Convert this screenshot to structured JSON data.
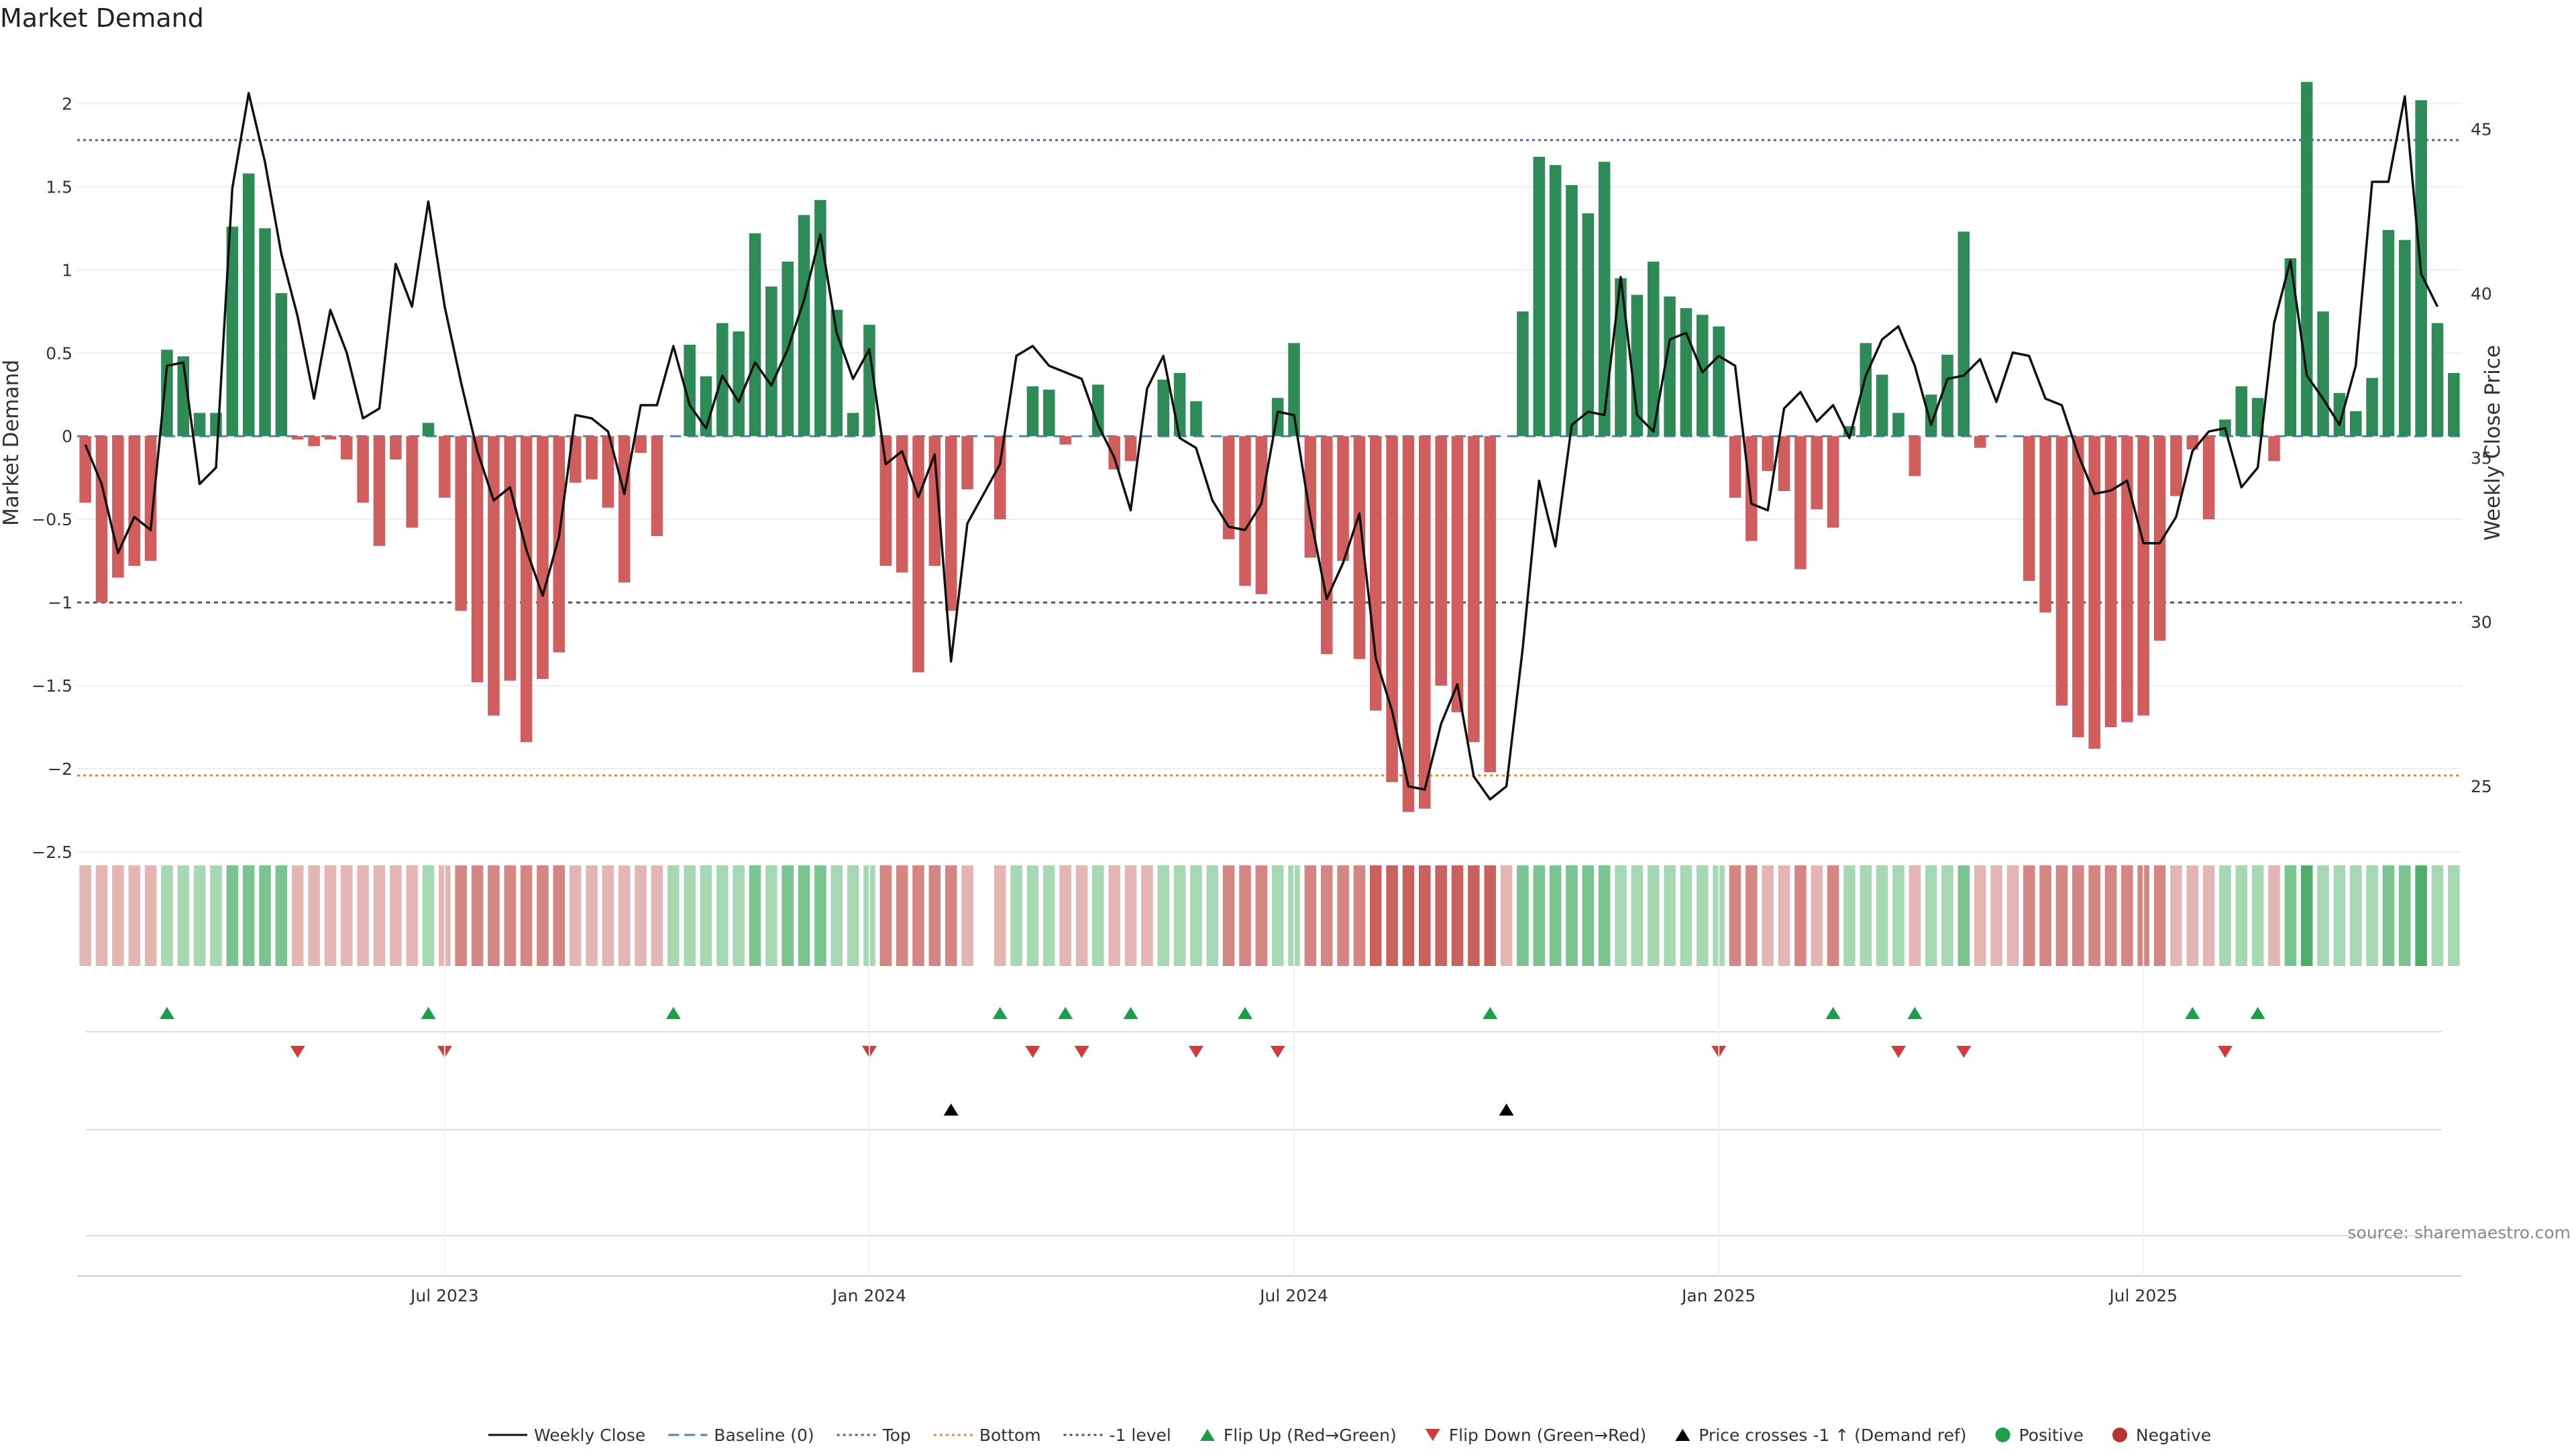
{
  "chart_data": {
    "type": "bar",
    "title": "Market Demand",
    "ylabel_left": "Market Demand",
    "ylabel_right": "Weekly Close Price",
    "ylim_left": [
      -2.5,
      2.3
    ],
    "ylim_right": [
      23.0,
      47.3
    ],
    "yticks_left": [
      2,
      1.5,
      1,
      0.5,
      0,
      -0.5,
      -1,
      -1.5,
      -2,
      -2.5
    ],
    "yticks_left_labels": [
      "2",
      "1.5",
      "1",
      "0.5",
      "0",
      "−0.5",
      "−1",
      "−1.5",
      "−2",
      "−2.5"
    ],
    "yticks_right": [
      45,
      40,
      35,
      30,
      25
    ],
    "xticks": [
      {
        "label": "Jul 2023",
        "week": 22
      },
      {
        "label": "Jan 2024",
        "week": 48
      },
      {
        "label": "Jul 2024",
        "week": 74
      },
      {
        "label": "Jan 2025",
        "week": 100
      },
      {
        "label": "Jul 2025",
        "week": 126
      }
    ],
    "reference_lines": {
      "top": 1.78,
      "bottom": -2.04,
      "minus_one": -1.0,
      "baseline": 0
    },
    "demand": [
      -0.4,
      -1.0,
      -0.85,
      -0.78,
      -0.75,
      0.52,
      0.48,
      0.14,
      0.14,
      1.26,
      1.58,
      1.25,
      0.86,
      -0.02,
      -0.06,
      -0.02,
      -0.14,
      -0.4,
      -0.66,
      -0.14,
      -0.55,
      0.08,
      -0.37,
      -1.05,
      -1.48,
      -1.68,
      -1.47,
      -1.84,
      -1.46,
      -1.3,
      -0.28,
      -0.26,
      -0.43,
      -0.88,
      -0.1,
      -0.6,
      0.0,
      0.55,
      0.36,
      0.68,
      0.63,
      1.22,
      0.9,
      1.05,
      1.33,
      1.42,
      0.76,
      0.14,
      0.67,
      -0.78,
      -0.82,
      -1.42,
      -0.78,
      -1.05,
      -0.32,
      0.0,
      -0.5,
      0.0,
      0.3,
      0.28,
      -0.05,
      0.0,
      0.31,
      -0.2,
      -0.15,
      0.0,
      0.34,
      0.38,
      0.21,
      0.0,
      -0.62,
      -0.9,
      -0.95,
      0.23,
      0.56,
      -0.73,
      -1.31,
      -0.75,
      -1.34,
      -1.65,
      -2.08,
      -2.26,
      -2.24,
      -1.5,
      -1.66,
      -1.84,
      -2.02,
      0.0,
      0.75,
      1.68,
      1.63,
      1.51,
      1.34,
      1.65,
      0.95,
      0.85,
      1.05,
      0.84,
      0.77,
      0.73,
      0.66,
      -0.37,
      -0.63,
      -0.21,
      -0.33,
      -0.8,
      -0.44,
      -0.55,
      0.06,
      0.56,
      0.37,
      0.14,
      -0.24,
      0.25,
      0.49,
      1.23,
      -0.07,
      0.0,
      0.0,
      -0.87,
      -1.06,
      -1.62,
      -1.81,
      -1.88,
      -1.75,
      -1.72,
      -1.68,
      -1.23,
      -0.36,
      -0.08,
      -0.5,
      0.1,
      0.3,
      0.23,
      -0.15,
      1.07,
      2.13,
      0.75,
      0.26,
      0.15,
      0.35,
      1.24,
      1.18,
      2.02,
      0.68,
      0.38
    ],
    "weekly_close": [
      35.4,
      34.2,
      32.1,
      33.2,
      32.8,
      37.8,
      37.9,
      34.2,
      34.7,
      43.2,
      46.1,
      44.0,
      41.2,
      39.3,
      36.8,
      39.5,
      38.2,
      36.2,
      36.5,
      40.9,
      39.6,
      42.8,
      39.6,
      37.3,
      35.2,
      33.7,
      34.1,
      32.2,
      30.8,
      32.6,
      36.3,
      36.2,
      35.8,
      33.9,
      36.6,
      36.6,
      38.4,
      36.6,
      35.9,
      37.5,
      36.7,
      37.9,
      37.2,
      38.3,
      39.8,
      41.8,
      38.8,
      37.4,
      38.3,
      34.8,
      35.2,
      33.8,
      35.1,
      28.8,
      33.0,
      33.9,
      34.8,
      38.1,
      38.4,
      37.8,
      37.6,
      37.4,
      36.0,
      35.0,
      33.4,
      37.1,
      38.1,
      35.6,
      35.3,
      33.7,
      32.9,
      32.8,
      33.6,
      36.4,
      36.3,
      33.2,
      30.7,
      31.8,
      33.3,
      28.9,
      27.3,
      25.0,
      24.9,
      26.9,
      28.1,
      25.3,
      24.6,
      25.0,
      29.2,
      34.3,
      32.3,
      36.0,
      36.4,
      36.3,
      40.5,
      36.3,
      35.8,
      38.6,
      38.8,
      37.6,
      38.1,
      37.8,
      33.6,
      33.4,
      36.5,
      37.0,
      36.1,
      36.6,
      35.6,
      37.5,
      38.6,
      39.0,
      37.8,
      36.0,
      37.4,
      37.5,
      38.0,
      36.7,
      38.2,
      38.1,
      36.8,
      36.6,
      35.1,
      33.9,
      34.0,
      34.3,
      32.4,
      32.4,
      33.2,
      35.2,
      35.8,
      35.9,
      34.1,
      34.7,
      39.1,
      41.0,
      37.5,
      36.8,
      36.0,
      37.8,
      43.4,
      43.4,
      46.0,
      40.6,
      39.6
    ],
    "strip_levels": [
      -1,
      -1,
      -1,
      -1,
      -1,
      1,
      1,
      1,
      1,
      2,
      2,
      2,
      2,
      -1,
      -1,
      -1,
      -1,
      -1,
      -1,
      -1,
      -1,
      1,
      -1,
      -2,
      -2,
      -2,
      -2,
      -2,
      -2,
      -2,
      -1,
      -1,
      -1,
      -1,
      -1,
      -1,
      1,
      1,
      1,
      1,
      1,
      2,
      1,
      2,
      2,
      2,
      1,
      1,
      1,
      -2,
      -2,
      -2,
      -2,
      -2,
      -1,
      0,
      -1,
      1,
      1,
      1,
      -1,
      -1,
      1,
      -1,
      -1,
      -1,
      1,
      1,
      1,
      1,
      -2,
      -2,
      -2,
      1,
      1,
      -2,
      -2,
      -2,
      -2,
      -3,
      -3,
      -3,
      -3,
      -3,
      -3,
      -3,
      -3,
      -1,
      2,
      2,
      2,
      2,
      2,
      2,
      1,
      1,
      1,
      1,
      1,
      1,
      1,
      -2,
      -2,
      -1,
      -1,
      -2,
      -1,
      -2,
      1,
      1,
      1,
      1,
      -1,
      1,
      1,
      2,
      -1,
      -1,
      -1,
      -2,
      -2,
      -2,
      -2,
      -2,
      -2,
      -2,
      -2,
      -2,
      -1,
      -1,
      -1,
      1,
      1,
      1,
      -1,
      2,
      3,
      1,
      1,
      1,
      1,
      2,
      2,
      3,
      1,
      1
    ],
    "flip_up_weeks": [
      5,
      21,
      36,
      56,
      60,
      64,
      71,
      86,
      107,
      112,
      129,
      133
    ],
    "flip_down_weeks": [
      13,
      22,
      48,
      58,
      61,
      68,
      73,
      100,
      111,
      115,
      131
    ],
    "price_cross_weeks": [
      53,
      87
    ],
    "source": "source: sharemaestro.com",
    "legend": [
      {
        "label": "Weekly Close",
        "kind": "line-solid",
        "color": "#111111"
      },
      {
        "label": "Baseline (0)",
        "kind": "line-dash",
        "color": "#4a86b8"
      },
      {
        "label": "Top",
        "kind": "line-dot",
        "color": "#5a5aa8"
      },
      {
        "label": "Bottom",
        "kind": "line-dot",
        "color": "#e08a2c"
      },
      {
        "label": "-1 level",
        "kind": "line-dot",
        "color": "#555555"
      },
      {
        "label": "Flip Up (Red→Green)",
        "kind": "tri-up",
        "color": "#1e9e4a"
      },
      {
        "label": "Flip Down (Green→Red)",
        "kind": "tri-down",
        "color": "#d23b3b"
      },
      {
        "label": "Price crosses -1 ↑ (Demand ref)",
        "kind": "tri-up",
        "color": "#000000"
      },
      {
        "label": "Positive",
        "kind": "dot",
        "color": "#1e9e4a"
      },
      {
        "label": "Negative",
        "kind": "dot",
        "color": "#b83232"
      }
    ],
    "colors": {
      "positive_bar": "#2e8a57",
      "negative_bar": "#d05e5e",
      "price_line": "#111111"
    }
  }
}
